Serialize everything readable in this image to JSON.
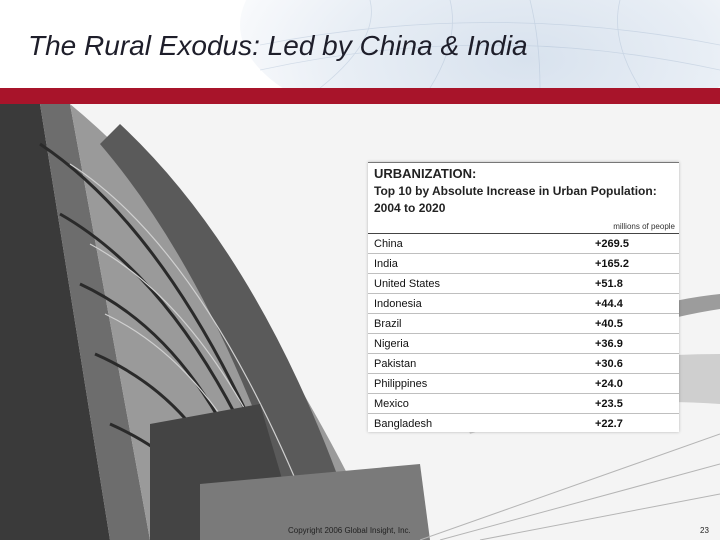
{
  "slide": {
    "title": "The Rural Exodus: Led by China & India",
    "accent_color": "#a8142a",
    "background_image": "modern-glass-building-photo",
    "header_image": "world-globe-map"
  },
  "table": {
    "heading": "URBANIZATION:",
    "subheading": "Top 10 by Absolute Increase in Urban Population: 2004 to 2020",
    "units": "millions of people",
    "rows": [
      {
        "country": "China",
        "value": "+269.5"
      },
      {
        "country": "India",
        "value": "+165.2"
      },
      {
        "country": "United States",
        "value": "+51.8"
      },
      {
        "country": "Indonesia",
        "value": "+44.4"
      },
      {
        "country": "Brazil",
        "value": "+40.5"
      },
      {
        "country": "Nigeria",
        "value": "+36.9"
      },
      {
        "country": "Pakistan",
        "value": "+30.6"
      },
      {
        "country": "Philippines",
        "value": "+24.0"
      },
      {
        "country": "Mexico",
        "value": "+23.5"
      },
      {
        "country": "Bangladesh",
        "value": "+22.7"
      }
    ]
  },
  "footer": {
    "copyright": "Copyright 2006 Global Insight, Inc.",
    "page_number": "23"
  }
}
